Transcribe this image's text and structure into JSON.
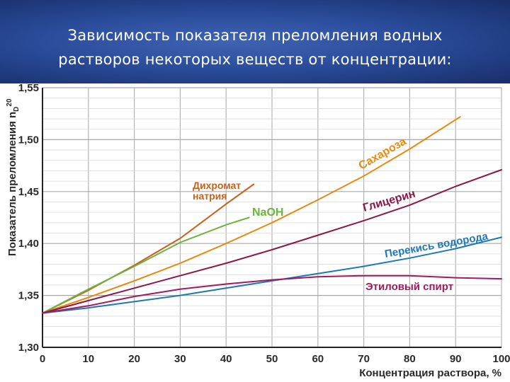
{
  "title": {
    "line1": "Зависимость показателя преломления водных",
    "line2": "растворов некоторых веществ от концентрации:"
  },
  "chart_data": {
    "type": "line",
    "ylabel": "Показатель преломления n",
    "ylabel_sub": "D",
    "ylabel_sup": "20",
    "xlabel": "Концентрация раствора, %",
    "xlim": [
      0,
      100
    ],
    "ylim": [
      1.3,
      1.55
    ],
    "grid": true,
    "xticks": [
      0,
      10,
      20,
      30,
      40,
      50,
      60,
      70,
      80,
      90,
      100
    ],
    "yticks": [
      1.3,
      1.35,
      1.4,
      1.45,
      1.5,
      1.55
    ],
    "ytick_labels": [
      "1,30",
      "1,35",
      "1,40",
      "1,45",
      "1,50",
      "1,55"
    ],
    "series": [
      {
        "name": "Сахароза",
        "color": "#e88a10",
        "x": [
          0,
          10,
          20,
          30,
          40,
          50,
          60,
          70,
          80,
          91
        ],
        "y": [
          1.333,
          1.348,
          1.364,
          1.381,
          1.4,
          1.42,
          1.442,
          1.465,
          1.491,
          1.522
        ]
      },
      {
        "name": "Дихромат натрия",
        "color": "#c8601a",
        "x": [
          0,
          10,
          20,
          30,
          40,
          46
        ],
        "y": [
          1.333,
          1.355,
          1.379,
          1.405,
          1.438,
          1.457
        ]
      },
      {
        "name": "NaOH",
        "color": "#6cb33f",
        "x": [
          0,
          10,
          20,
          30,
          40,
          45
        ],
        "y": [
          1.333,
          1.356,
          1.378,
          1.401,
          1.418,
          1.425
        ]
      },
      {
        "name": "Глицерин",
        "color": "#8c1848",
        "x": [
          0,
          10,
          20,
          30,
          40,
          50,
          60,
          70,
          80,
          90,
          100
        ],
        "y": [
          1.333,
          1.345,
          1.357,
          1.369,
          1.381,
          1.394,
          1.408,
          1.422,
          1.437,
          1.455,
          1.471
        ]
      },
      {
        "name": "Перекись водорода",
        "color": "#1f78b4",
        "x": [
          0,
          10,
          20,
          30,
          40,
          50,
          60,
          70,
          80,
          90,
          100
        ],
        "y": [
          1.333,
          1.338,
          1.344,
          1.35,
          1.357,
          1.364,
          1.371,
          1.378,
          1.386,
          1.395,
          1.406
        ]
      },
      {
        "name": "Этиловый спирт",
        "color": "#a01c5e",
        "x": [
          0,
          10,
          20,
          30,
          40,
          50,
          60,
          70,
          80,
          90,
          100
        ],
        "y": [
          1.333,
          1.34,
          1.349,
          1.356,
          1.361,
          1.365,
          1.368,
          1.369,
          1.369,
          1.367,
          1.366
        ]
      }
    ]
  }
}
